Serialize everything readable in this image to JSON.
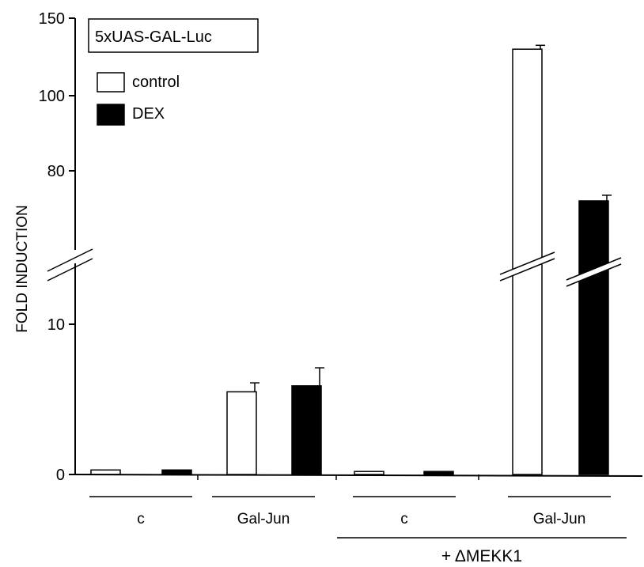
{
  "chart_data": {
    "type": "bar",
    "title": "5xUAS-GAL-Luc",
    "ylabel": "FOLD INDUCTION",
    "ylim": [
      0,
      150
    ],
    "y_ticks": [
      "150",
      "100",
      "80",
      "10",
      "0"
    ],
    "axis_break": "between 10 and 80",
    "categories": [
      "c",
      "Gal-Jun",
      "c",
      "Gal-Jun"
    ],
    "bracket_label": "+ ΔMEKK1",
    "bracket_covers": [
      2,
      3
    ],
    "series": [
      {
        "name": "control",
        "color": "#ffffff",
        "values": [
          0.3,
          5.5,
          0.2,
          130
        ],
        "errors": [
          0,
          0.6,
          0,
          2.5
        ]
      },
      {
        "name": "DEX",
        "color": "#000000",
        "values": [
          0.3,
          5.9,
          0.2,
          72
        ],
        "errors": [
          0,
          1.2,
          0,
          1.5
        ]
      }
    ]
  }
}
